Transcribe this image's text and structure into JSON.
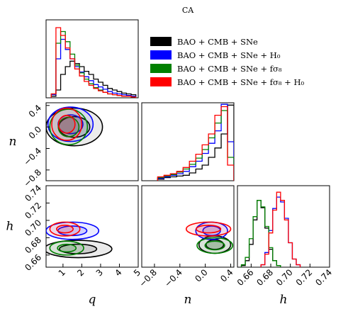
{
  "chart_data": {
    "type": "corner",
    "title": "CA",
    "parameters": [
      {
        "key": "q",
        "label": "q",
        "range": [
          0.1,
          5
        ],
        "ticks": [
          1,
          2,
          3,
          4,
          5
        ]
      },
      {
        "key": "n",
        "label": "n",
        "range": [
          -1.0,
          0.45
        ],
        "ticks": [
          -0.8,
          -0.4,
          0.0,
          0.4
        ]
      },
      {
        "key": "h",
        "label": "h",
        "range": [
          0.646,
          0.74
        ],
        "ticks": [
          0.66,
          0.68,
          0.7,
          0.72,
          0.74
        ]
      }
    ],
    "n_ticks_left": [
      -0.8,
      -0.4,
      0.0,
      0.4
    ],
    "h_ticks_left": [
      0.66,
      0.68,
      0.7,
      0.72,
      0.74
    ],
    "n_tick_labels": [
      "−0.8",
      "−0.4",
      "0.0",
      "0.4"
    ],
    "h_tick_labels": [
      "0.66",
      "0.68",
      "0.70",
      "0.72",
      "0.74"
    ],
    "q_tick_labels": [
      "1",
      "2",
      "3",
      "4",
      "5"
    ],
    "n_bottom_tick_labels": [
      "−0.8",
      "−0.4",
      "0.0",
      "0.4"
    ],
    "h_bottom_tick_labels": [
      "0.66",
      "0.68",
      "0.70",
      "0.72",
      "0.74"
    ],
    "legend": {
      "placement": "upper-right",
      "entries": [
        {
          "label": "BAO + CMB + SNe",
          "color": "#000000"
        },
        {
          "label": "BAO + CMB + SNe + H₀",
          "color": "#0000ff"
        },
        {
          "label": "BAO + CMB + SNe + fσ₈",
          "color": "#008000"
        },
        {
          "label": "BAO + CMB + SNe + fσ₈ + H₀",
          "color": "#ff0000"
        }
      ]
    },
    "series": [
      {
        "color": "#000000",
        "hist_q": [
          [
            0.5,
            0.02
          ],
          [
            0.75,
            0.1
          ],
          [
            1.0,
            0.3
          ],
          [
            1.25,
            0.4
          ],
          [
            1.5,
            0.47
          ],
          [
            1.75,
            0.44
          ],
          [
            2.0,
            0.4
          ],
          [
            2.25,
            0.34
          ],
          [
            2.5,
            0.3
          ],
          [
            2.75,
            0.24
          ],
          [
            3.0,
            0.2
          ],
          [
            3.25,
            0.16
          ],
          [
            3.5,
            0.12
          ],
          [
            3.75,
            0.1
          ],
          [
            4.0,
            0.08
          ],
          [
            4.25,
            0.06
          ],
          [
            4.5,
            0.05
          ],
          [
            4.75,
            0.04
          ]
        ],
        "hist_n": [
          [
            -0.7,
            0.02
          ],
          [
            -0.6,
            0.04
          ],
          [
            -0.5,
            0.05
          ],
          [
            -0.4,
            0.06
          ],
          [
            -0.3,
            0.07
          ],
          [
            -0.2,
            0.1
          ],
          [
            -0.1,
            0.15
          ],
          [
            0.0,
            0.2
          ],
          [
            0.1,
            0.3
          ],
          [
            0.2,
            0.42
          ],
          [
            0.3,
            0.6
          ],
          [
            0.4,
            0.97
          ]
        ],
        "hist_h": [
          [
            0.652,
            0.02
          ],
          [
            0.656,
            0.08
          ],
          [
            0.66,
            0.28
          ],
          [
            0.664,
            0.58
          ],
          [
            0.668,
            0.82
          ],
          [
            0.672,
            0.73
          ],
          [
            0.676,
            0.48
          ],
          [
            0.68,
            0.22
          ],
          [
            0.684,
            0.08
          ],
          [
            0.688,
            0.02
          ]
        ],
        "q_n": {
          "center": [
            1.6,
            0.0
          ],
          "spread": [
            1.5,
            0.35
          ]
        },
        "q_h": {
          "center": [
            1.8,
            0.667
          ],
          "spread": [
            1.8,
            0.01
          ]
        },
        "n_h": {
          "center": [
            0.15,
            0.672
          ],
          "spread": [
            0.25,
            0.01
          ]
        }
      },
      {
        "color": "#0000ff",
        "hist_q": [
          [
            0.5,
            0.04
          ],
          [
            0.75,
            0.5
          ],
          [
            1.0,
            0.75
          ],
          [
            1.25,
            0.62
          ],
          [
            1.5,
            0.5
          ],
          [
            1.75,
            0.4
          ],
          [
            2.0,
            0.33
          ],
          [
            2.25,
            0.27
          ],
          [
            2.5,
            0.22
          ],
          [
            2.75,
            0.17
          ],
          [
            3.0,
            0.14
          ],
          [
            3.25,
            0.11
          ],
          [
            3.5,
            0.08
          ],
          [
            3.75,
            0.06
          ],
          [
            4.0,
            0.05
          ],
          [
            4.25,
            0.04
          ],
          [
            4.5,
            0.03
          ],
          [
            4.75,
            0.02
          ]
        ],
        "hist_n": [
          [
            -0.7,
            0.03
          ],
          [
            -0.6,
            0.05
          ],
          [
            -0.5,
            0.07
          ],
          [
            -0.4,
            0.09
          ],
          [
            -0.3,
            0.12
          ],
          [
            -0.2,
            0.18
          ],
          [
            -0.1,
            0.25
          ],
          [
            0.0,
            0.35
          ],
          [
            0.1,
            0.48
          ],
          [
            0.2,
            0.64
          ],
          [
            0.3,
            0.98
          ],
          [
            0.4,
            0.5
          ]
        ],
        "hist_h": [
          [
            0.672,
            0.03
          ],
          [
            0.676,
            0.18
          ],
          [
            0.68,
            0.45
          ],
          [
            0.684,
            0.72
          ],
          [
            0.688,
            0.86
          ],
          [
            0.692,
            0.8
          ],
          [
            0.696,
            0.6
          ],
          [
            0.7,
            0.3
          ],
          [
            0.704,
            0.1
          ],
          [
            0.708,
            0.03
          ]
        ],
        "q_n": {
          "center": [
            1.4,
            0.05
          ],
          "spread": [
            1.2,
            0.32
          ]
        },
        "q_h": {
          "center": [
            1.5,
            0.688
          ],
          "spread": [
            1.4,
            0.01
          ]
        },
        "n_h": {
          "center": [
            0.1,
            0.688
          ],
          "spread": [
            0.25,
            0.01
          ]
        }
      },
      {
        "color": "#008000",
        "hist_q": [
          [
            0.5,
            0.05
          ],
          [
            0.75,
            0.7
          ],
          [
            1.0,
            0.85
          ],
          [
            1.25,
            0.72
          ],
          [
            1.5,
            0.56
          ],
          [
            1.75,
            0.42
          ],
          [
            2.0,
            0.32
          ],
          [
            2.25,
            0.24
          ],
          [
            2.5,
            0.18
          ],
          [
            2.75,
            0.13
          ],
          [
            3.0,
            0.1
          ],
          [
            3.25,
            0.07
          ],
          [
            3.5,
            0.05
          ],
          [
            3.75,
            0.04
          ],
          [
            4.0,
            0.03
          ],
          [
            4.25,
            0.02
          ],
          [
            4.5,
            0.02
          ],
          [
            4.75,
            0.01
          ]
        ],
        "hist_n": [
          [
            -0.7,
            0.04
          ],
          [
            -0.6,
            0.06
          ],
          [
            -0.5,
            0.08
          ],
          [
            -0.4,
            0.11
          ],
          [
            -0.3,
            0.15
          ],
          [
            -0.2,
            0.21
          ],
          [
            -0.1,
            0.29
          ],
          [
            0.0,
            0.4
          ],
          [
            0.1,
            0.55
          ],
          [
            0.2,
            0.74
          ],
          [
            0.3,
            0.9
          ],
          [
            0.4,
            0.3
          ]
        ],
        "hist_h": [
          [
            0.652,
            0.03
          ],
          [
            0.656,
            0.12
          ],
          [
            0.66,
            0.35
          ],
          [
            0.664,
            0.62
          ],
          [
            0.668,
            0.82
          ],
          [
            0.672,
            0.74
          ],
          [
            0.676,
            0.5
          ],
          [
            0.68,
            0.24
          ],
          [
            0.684,
            0.08
          ],
          [
            0.688,
            0.02
          ]
        ],
        "q_n": {
          "center": [
            1.3,
            0.0
          ],
          "spread": [
            1.0,
            0.33
          ]
        },
        "q_h": {
          "center": [
            1.2,
            0.668
          ],
          "spread": [
            0.9,
            0.008
          ]
        },
        "n_h": {
          "center": [
            0.15,
            0.671
          ],
          "spread": [
            0.28,
            0.009
          ]
        }
      },
      {
        "color": "#ff0000",
        "hist_q": [
          [
            0.5,
            0.05
          ],
          [
            0.75,
            0.9
          ],
          [
            1.0,
            0.8
          ],
          [
            1.25,
            0.64
          ],
          [
            1.5,
            0.5
          ],
          [
            1.75,
            0.37
          ],
          [
            2.0,
            0.28
          ],
          [
            2.25,
            0.21
          ],
          [
            2.5,
            0.16
          ],
          [
            2.75,
            0.12
          ],
          [
            3.0,
            0.09
          ],
          [
            3.25,
            0.07
          ],
          [
            3.5,
            0.05
          ],
          [
            3.75,
            0.04
          ],
          [
            4.0,
            0.03
          ],
          [
            4.25,
            0.02
          ],
          [
            4.5,
            0.02
          ],
          [
            4.75,
            0.01
          ]
        ],
        "hist_n": [
          [
            -0.7,
            0.05
          ],
          [
            -0.6,
            0.07
          ],
          [
            -0.5,
            0.09
          ],
          [
            -0.4,
            0.12
          ],
          [
            -0.3,
            0.17
          ],
          [
            -0.2,
            0.25
          ],
          [
            -0.1,
            0.34
          ],
          [
            0.0,
            0.46
          ],
          [
            0.1,
            0.6
          ],
          [
            0.2,
            0.84
          ],
          [
            0.3,
            0.95
          ],
          [
            0.4,
            0.2
          ]
        ],
        "hist_h": [
          [
            0.672,
            0.03
          ],
          [
            0.676,
            0.16
          ],
          [
            0.68,
            0.42
          ],
          [
            0.684,
            0.7
          ],
          [
            0.688,
            0.92
          ],
          [
            0.692,
            0.82
          ],
          [
            0.696,
            0.58
          ],
          [
            0.7,
            0.3
          ],
          [
            0.704,
            0.1
          ],
          [
            0.708,
            0.03
          ]
        ],
        "q_n": {
          "center": [
            1.2,
            0.05
          ],
          "spread": [
            0.8,
            0.3
          ]
        },
        "q_h": {
          "center": [
            1.1,
            0.69
          ],
          "spread": [
            0.8,
            0.008
          ]
        },
        "n_h": {
          "center": [
            0.05,
            0.69
          ],
          "spread": [
            0.35,
            0.008
          ]
        }
      }
    ]
  }
}
